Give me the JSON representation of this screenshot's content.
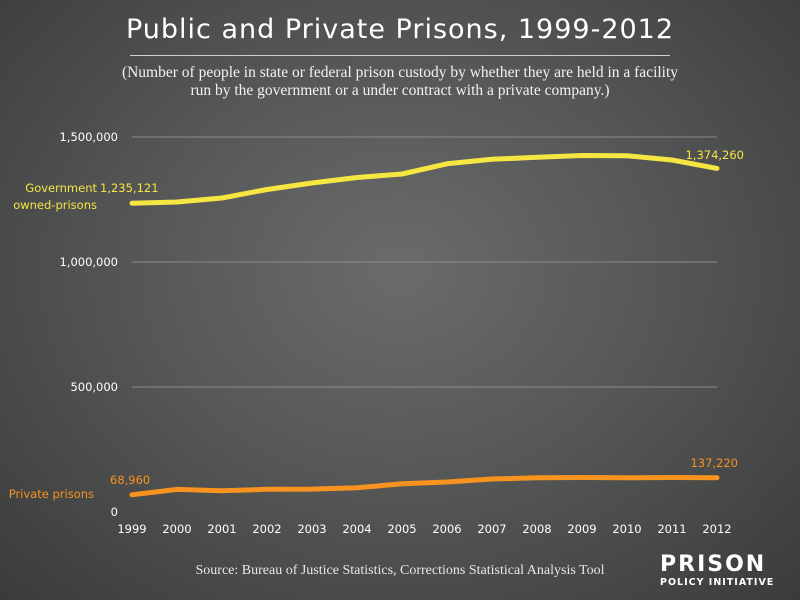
{
  "header": {
    "title": "Public and Private Prisons, 1999-2012",
    "subtitle_line1": "(Number of people in state or federal prison custody by whether they are held in a facility",
    "subtitle_line2": "run by the government or a under contract with a private company.)"
  },
  "footer": {
    "source": "Source: Bureau of Justice Statistics, Corrections Statistical Analysis Tool",
    "logo_top": "PRISON",
    "logo_bottom": "POLICY INITIATIVE"
  },
  "colors": {
    "government": "#f5e642",
    "private": "#f7931e",
    "grid": "#8a8b8b"
  },
  "chart_data": {
    "type": "line",
    "x": [
      1999,
      2000,
      2001,
      2002,
      2003,
      2004,
      2005,
      2006,
      2007,
      2008,
      2009,
      2010,
      2011,
      2012
    ],
    "x_tick_labels": [
      "1999",
      "2000",
      "2001",
      "2002",
      "2003",
      "2004",
      "2005",
      "2006",
      "2007",
      "2008",
      "2009",
      "2010",
      "2011",
      "2012"
    ],
    "ylim": [
      0,
      1500000
    ],
    "y_ticks": [
      0,
      500000,
      1000000,
      1500000
    ],
    "y_tick_labels": [
      "0",
      "500,000",
      "1,000,000",
      "1,500,000"
    ],
    "grid": true,
    "series": [
      {
        "name": "Government owned-prisons",
        "label_line1": "Government",
        "label_line2": "owned-prisons",
        "start_label": "1,235,121",
        "end_label": "1,374,260",
        "color": "#f5e642",
        "values": [
          1235121,
          1240000,
          1256000,
          1290000,
          1316000,
          1338000,
          1352000,
          1393000,
          1411000,
          1419000,
          1426000,
          1425000,
          1408000,
          1374260
        ]
      },
      {
        "name": "Private prisons",
        "label_line1": "Private prisons",
        "start_label": "68,960",
        "end_label": "137,220",
        "color": "#f7931e",
        "values": [
          68960,
          90500,
          85000,
          91000,
          91500,
          97000,
          113000,
          120000,
          132000,
          137000,
          138000,
          137000,
          138000,
          137220
        ]
      }
    ]
  }
}
